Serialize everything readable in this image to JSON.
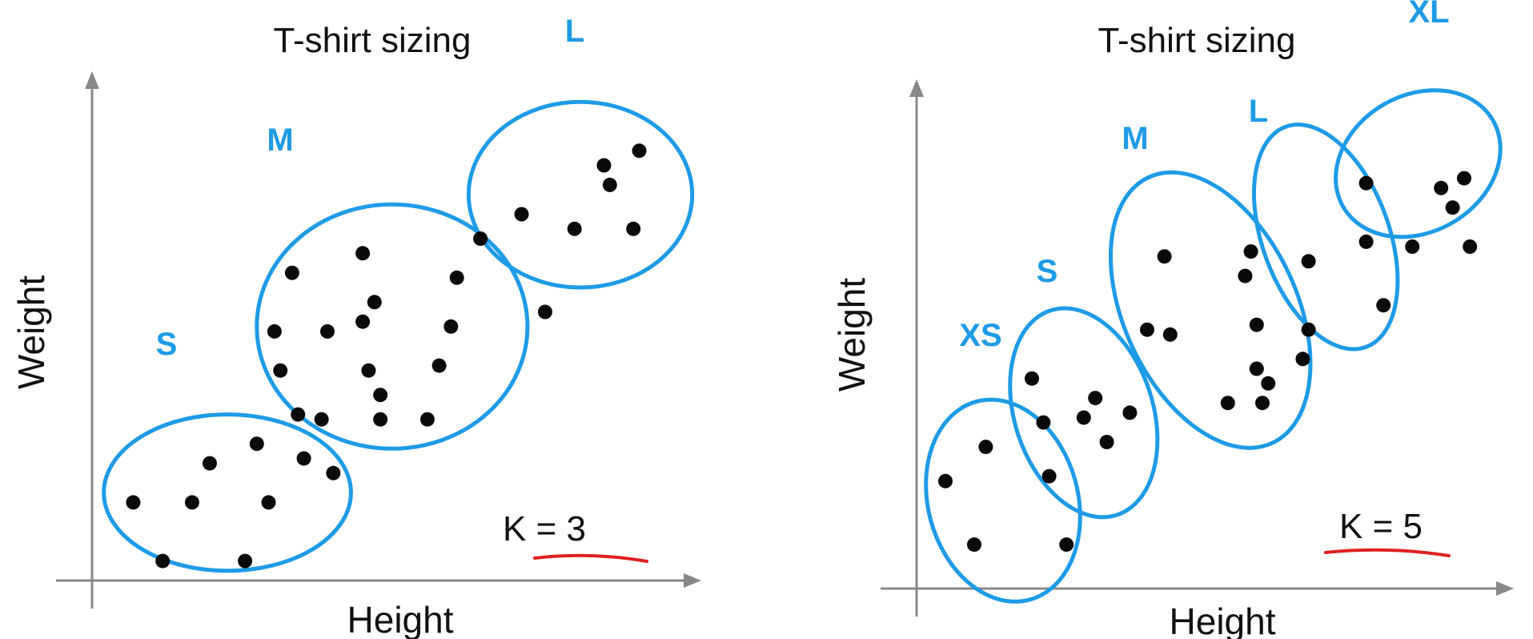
{
  "colors": {
    "cluster_outline": "#1e9be6",
    "cluster_label": "#1e9be6",
    "point": "#0a0a0a",
    "axis": "#888888",
    "underline": "#e02020",
    "text": "#111111"
  },
  "chart_data": [
    {
      "type": "scatter",
      "title": "T-shirt sizing",
      "xlabel": "Height",
      "ylabel": "Weight",
      "xlim": [
        0,
        100
      ],
      "ylim": [
        0,
        100
      ],
      "k_label": "K = 3",
      "clusters": [
        {
          "name": "S",
          "center": [
            23,
            18
          ],
          "radius": [
            21,
            16
          ],
          "rotation": 0
        },
        {
          "name": "M",
          "center": [
            51,
            52
          ],
          "radius": [
            23,
            25
          ],
          "rotation": 0
        },
        {
          "name": "L",
          "center": [
            83,
            79
          ],
          "radius": [
            19,
            19
          ],
          "rotation": 0
        }
      ],
      "points": [
        [
          7,
          16
        ],
        [
          20,
          24
        ],
        [
          28,
          28
        ],
        [
          17,
          16
        ],
        [
          30,
          16
        ],
        [
          12,
          4
        ],
        [
          26,
          4
        ],
        [
          36,
          25
        ],
        [
          41,
          22
        ],
        [
          32,
          43
        ],
        [
          35,
          34
        ],
        [
          34,
          63
        ],
        [
          46,
          67
        ],
        [
          48,
          57
        ],
        [
          62,
          62
        ],
        [
          31,
          51
        ],
        [
          40,
          51
        ],
        [
          46,
          53
        ],
        [
          61,
          52
        ],
        [
          47,
          43
        ],
        [
          59,
          44
        ],
        [
          49,
          38
        ],
        [
          49,
          33
        ],
        [
          39,
          33
        ],
        [
          57,
          33
        ],
        [
          66,
          70
        ],
        [
          87,
          85
        ],
        [
          93,
          88
        ],
        [
          88,
          81
        ],
        [
          73,
          75
        ],
        [
          82,
          72
        ],
        [
          92,
          72
        ],
        [
          77,
          55
        ]
      ]
    },
    {
      "type": "scatter",
      "title": "T-shirt sizing",
      "xlabel": "Height",
      "ylabel": "Weight",
      "xlim": [
        0,
        100
      ],
      "ylim": [
        0,
        100
      ],
      "k_label": "K = 5",
      "clusters": [
        {
          "name": "XS",
          "center": [
            15,
            18
          ],
          "radius": [
            13,
            21
          ],
          "rotation": -15
        },
        {
          "name": "S",
          "center": [
            29,
            36
          ],
          "radius": [
            12,
            22
          ],
          "rotation": -18
        },
        {
          "name": "M",
          "center": [
            51,
            57
          ],
          "radius": [
            15,
            30
          ],
          "rotation": -25
        },
        {
          "name": "L",
          "center": [
            71,
            72
          ],
          "radius": [
            11,
            24
          ],
          "rotation": -20
        },
        {
          "name": "XL",
          "center": [
            87,
            87
          ],
          "radius": [
            15,
            14
          ],
          "rotation": -30
        }
      ],
      "points": [
        [
          5,
          22
        ],
        [
          12,
          29
        ],
        [
          23,
          23
        ],
        [
          10,
          9
        ],
        [
          26,
          9
        ],
        [
          20,
          43
        ],
        [
          22,
          34
        ],
        [
          33,
          30
        ],
        [
          31,
          39
        ],
        [
          37,
          36
        ],
        [
          29,
          35
        ],
        [
          43,
          68
        ],
        [
          58,
          69
        ],
        [
          57,
          64
        ],
        [
          40,
          53
        ],
        [
          44,
          52
        ],
        [
          59,
          54
        ],
        [
          59,
          45
        ],
        [
          61,
          42
        ],
        [
          67,
          47
        ],
        [
          54,
          38
        ],
        [
          60,
          38
        ],
        [
          68,
          67
        ],
        [
          78,
          71
        ],
        [
          86,
          70
        ],
        [
          68,
          53
        ],
        [
          81,
          58
        ],
        [
          78,
          83
        ],
        [
          91,
          82
        ],
        [
          95,
          84
        ],
        [
          93,
          78
        ],
        [
          96,
          70
        ]
      ]
    }
  ]
}
